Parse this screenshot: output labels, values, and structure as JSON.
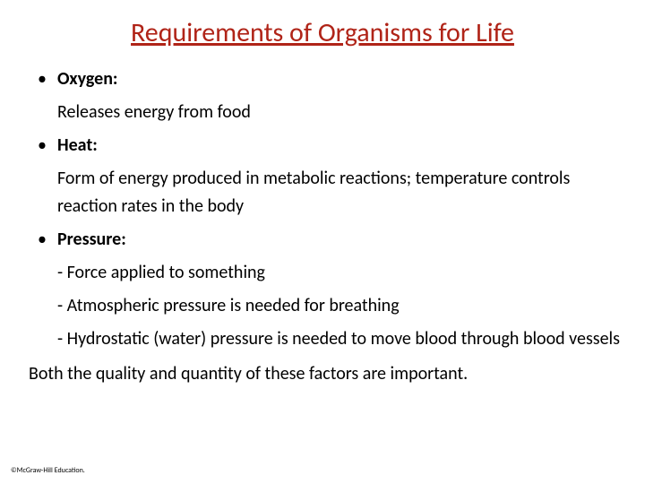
{
  "title": {
    "text": "Requirements of Organisms for Life",
    "color": "#b02418",
    "fontsize": 30
  },
  "body": {
    "color": "#000000",
    "fontsize": 20,
    "items": [
      {
        "label": "Oxygen:",
        "lines": [
          "Releases energy from food"
        ]
      },
      {
        "label": "Heat:",
        "lines": [
          "Form of energy produced in metabolic reactions; temperature controls reaction rates in the body"
        ]
      },
      {
        "label": "Pressure:",
        "lines": [
          "- Force applied to something",
          "- Atmospheric pressure is needed for breathing",
          "- Hydrostatic (water) pressure is needed to move blood through blood vessels"
        ]
      }
    ],
    "closing": "Both the quality and quantity of these factors are important."
  },
  "footer": "©McGraw-Hill Education."
}
